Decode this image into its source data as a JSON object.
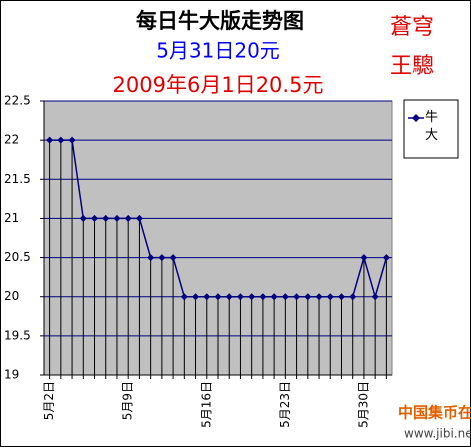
{
  "chart_data": {
    "type": "line",
    "title": "每日牛大版走势图",
    "subtitle": "5月31日20元",
    "annotation": "2009年6月1日20.5元",
    "signature": [
      "蒼穹",
      "王驄"
    ],
    "watermark": [
      "中国集币在线",
      "www.jibi.net"
    ],
    "categories": [
      "5月2日",
      null,
      null,
      null,
      null,
      null,
      null,
      "5月9日",
      null,
      null,
      null,
      null,
      null,
      null,
      "5月16日",
      null,
      null,
      null,
      null,
      null,
      null,
      "5月23日",
      null,
      null,
      null,
      null,
      null,
      null,
      "5月30日",
      null,
      null
    ],
    "series": [
      {
        "name": "牛大",
        "color": "#000080",
        "values": [
          22,
          22,
          22,
          21,
          21,
          21,
          21,
          21,
          21,
          20.5,
          20.5,
          20.5,
          20,
          20,
          20,
          20,
          20,
          20,
          20,
          20,
          20,
          20,
          20,
          20,
          20,
          20,
          20,
          20,
          20.5,
          20,
          20.5
        ]
      }
    ],
    "ylim": [
      19,
      22.5
    ],
    "yticks": [
      19,
      19.5,
      20,
      20.5,
      21,
      21.5,
      22,
      22.5
    ],
    "grid": true,
    "drop_lines": true,
    "plot_background": "#c0c0c0",
    "legend": "right"
  }
}
